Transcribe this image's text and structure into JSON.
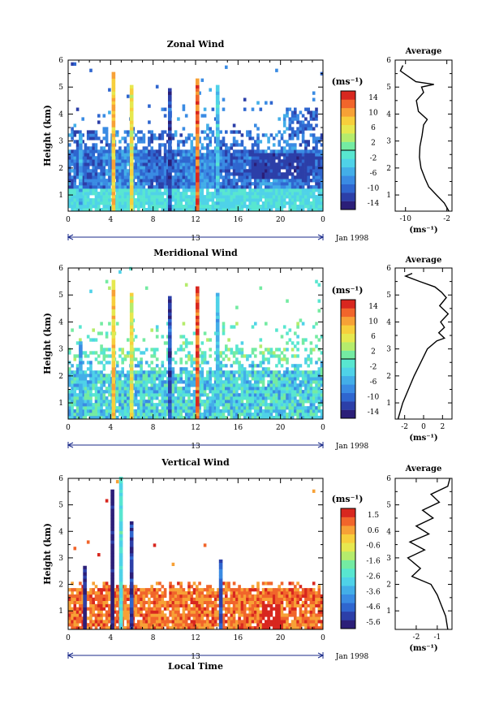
{
  "figure": {
    "date_label": "Jan 1998",
    "xaxis_label": "Local Time",
    "day_label": "13",
    "height_label": "Height (km)",
    "unit_label": "(ms⁻¹)",
    "average_title": "Average"
  },
  "colors": {
    "colormap": [
      "#2b1e78",
      "#2c3fa8",
      "#2f66cf",
      "#3a8be3",
      "#43aee8",
      "#4fd2e8",
      "#58e6d0",
      "#74eba2",
      "#b5ec6c",
      "#e6e84f",
      "#f7cf3c",
      "#f7a136",
      "#f1652b",
      "#d8271f"
    ]
  },
  "chart_data": [
    {
      "type": "heatmap",
      "title": "Zonal Wind",
      "ylabel": "Height (km)",
      "x_ticks": [
        "0",
        "4",
        "8",
        "12",
        "16",
        "20",
        "0"
      ],
      "x_range": [
        0,
        24
      ],
      "y_ticks": [
        "1",
        "2",
        "3",
        "4",
        "5",
        "6"
      ],
      "y_range": [
        0.4,
        6.0
      ],
      "colorbar_ticks": [
        "14",
        "10",
        "6",
        "2",
        "-2",
        "-6",
        "-10",
        "-14"
      ],
      "colorbar_range": [
        -16,
        16
      ],
      "profile": {
        "title": "Average",
        "xlabel": "(ms⁻¹)",
        "x_ticks": [
          "-10",
          "-2"
        ],
        "x_range": [
          -12,
          -1
        ],
        "points": [
          [
            -1.6,
            0.4
          ],
          [
            -2.5,
            0.7
          ],
          [
            -4,
            1.0
          ],
          [
            -5.5,
            1.3
          ],
          [
            -6.2,
            1.6
          ],
          [
            -7,
            2.0
          ],
          [
            -7.3,
            2.4
          ],
          [
            -7.2,
            2.8
          ],
          [
            -6.8,
            3.2
          ],
          [
            -6.5,
            3.6
          ],
          [
            -5.8,
            3.8
          ],
          [
            -7.5,
            4.1
          ],
          [
            -7.9,
            4.5
          ],
          [
            -6.5,
            4.8
          ],
          [
            -6.9,
            5.0
          ],
          [
            -4.5,
            5.1
          ],
          [
            -8,
            5.2
          ],
          [
            -9.5,
            5.4
          ],
          [
            -11,
            5.6
          ],
          [
            -10.5,
            5.8
          ]
        ]
      }
    },
    {
      "type": "heatmap",
      "title": "Meridional Wind",
      "ylabel": "Height (km)",
      "x_ticks": [
        "0",
        "4",
        "8",
        "12",
        "16",
        "20",
        "0"
      ],
      "x_range": [
        0,
        24
      ],
      "y_ticks": [
        "1",
        "2",
        "3",
        "4",
        "5",
        "6"
      ],
      "y_range": [
        0.4,
        6.0
      ],
      "colorbar_ticks": [
        "14",
        "10",
        "6",
        "2",
        "-2",
        "-6",
        "-10",
        "-14"
      ],
      "colorbar_range": [
        -16,
        16
      ],
      "profile": {
        "title": "Average",
        "xlabel": "(ms⁻¹)",
        "x_ticks": [
          "-2",
          "0",
          "2"
        ],
        "x_range": [
          -3,
          3
        ],
        "points": [
          [
            -2.7,
            0.4
          ],
          [
            -2.2,
            1.0
          ],
          [
            -1.6,
            1.5
          ],
          [
            -1,
            2.0
          ],
          [
            -0.3,
            2.5
          ],
          [
            0.4,
            3.0
          ],
          [
            1.4,
            3.3
          ],
          [
            2.2,
            3.4
          ],
          [
            1.6,
            3.6
          ],
          [
            2.2,
            3.8
          ],
          [
            1.8,
            4.0
          ],
          [
            2.6,
            4.3
          ],
          [
            1.7,
            4.6
          ],
          [
            2.4,
            4.9
          ],
          [
            1.9,
            5.1
          ],
          [
            1.2,
            5.3
          ],
          [
            -0.4,
            5.5
          ],
          [
            -1.9,
            5.7
          ],
          [
            -1.2,
            5.8
          ]
        ]
      }
    },
    {
      "type": "heatmap",
      "title": "Vertical Wind",
      "ylabel": "Height (km)",
      "xlabel": "Local Time",
      "x_ticks": [
        "0",
        "4",
        "8",
        "12",
        "16",
        "20",
        "0"
      ],
      "x_range": [
        0,
        24
      ],
      "y_ticks": [
        "1",
        "2",
        "3",
        "4",
        "5",
        "6"
      ],
      "y_range": [
        0.3,
        6.0
      ],
      "colorbar_ticks": [
        "1.5",
        "0.6",
        "-0.6",
        "-1.6",
        "-2.6",
        "-3.6",
        "-4.6",
        "-5.6"
      ],
      "colorbar_range": [
        -6.0,
        2.0
      ],
      "profile": {
        "title": "Average",
        "xlabel": "(ms⁻¹)",
        "x_ticks": [
          "-2",
          "-1"
        ],
        "x_range": [
          -3,
          -0.3
        ],
        "points": [
          [
            -0.5,
            0.3
          ],
          [
            -0.6,
            0.8
          ],
          [
            -0.8,
            1.2
          ],
          [
            -1.0,
            1.6
          ],
          [
            -1.3,
            2.0
          ],
          [
            -2.2,
            2.3
          ],
          [
            -1.8,
            2.6
          ],
          [
            -2.4,
            3.0
          ],
          [
            -1.6,
            3.3
          ],
          [
            -2.3,
            3.6
          ],
          [
            -1.4,
            3.9
          ],
          [
            -2.0,
            4.2
          ],
          [
            -1.2,
            4.5
          ],
          [
            -1.7,
            4.8
          ],
          [
            -0.9,
            5.1
          ],
          [
            -1.3,
            5.4
          ],
          [
            -0.5,
            5.7
          ],
          [
            -0.4,
            6.0
          ]
        ]
      }
    }
  ]
}
